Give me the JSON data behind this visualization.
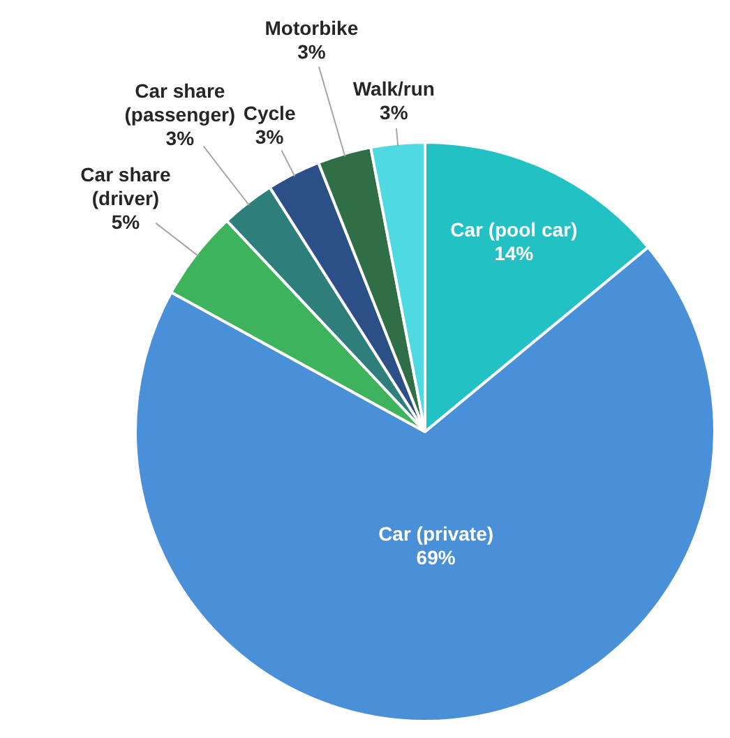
{
  "chart_data": {
    "type": "pie",
    "categories": [
      "Car (pool car)",
      "Car (private)",
      "Car share (driver)",
      "Car share (passenger)",
      "Cycle",
      "Motorbike",
      "Walk/run"
    ],
    "values": [
      14,
      69,
      5,
      3,
      3,
      3,
      3
    ],
    "value_labels": [
      "14%",
      "69%",
      "5%",
      "3%",
      "3%",
      "3%",
      "3%"
    ],
    "colors": [
      "#22c1c3",
      "#4a90d9",
      "#3db45c",
      "#2e7f7c",
      "#2b4f86",
      "#2f6e47",
      "#4fd9e0"
    ],
    "legend": false
  }
}
